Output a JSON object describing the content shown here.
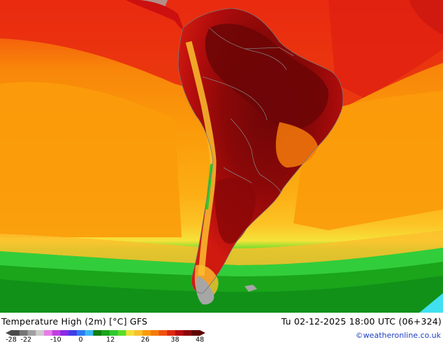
{
  "map": {
    "region": "South America",
    "field": "2m maximum temperature",
    "colors": {
      "green_dark": "#0a8a1e",
      "green": "#17b52b",
      "green_light": "#35d23f",
      "yellow": "#f6e23a",
      "orange_light": "#fbbf2e",
      "orange": "#fb9b0a",
      "orange_dark": "#f47a0a",
      "red_orange": "#f2520e",
      "red": "#e82810",
      "red_dark": "#cc1010",
      "maroon": "#a0080a",
      "maroon_dark": "#6e0607",
      "land_gray": "#a6a6a6",
      "border": "#888888",
      "sea_ice_cyan": "#40e0f0"
    }
  },
  "footer": {
    "title": "Temperature High (2m) [°C] GFS",
    "valid_time": "Tu 02-12-2025 18:00 UTC (06+324)",
    "credit": "©weatheronline.co.uk"
  },
  "legend": {
    "ticks": [
      "-28",
      "-22",
      "-10",
      "0",
      "12",
      "26",
      "38",
      "48"
    ],
    "tick_values": [
      -28,
      -22,
      -10,
      0,
      12,
      26,
      38,
      48
    ],
    "range": [
      -28,
      48
    ],
    "colors": [
      "#4a4a4a",
      "#767676",
      "#a0a0a0",
      "#cccccc",
      "#e87ce8",
      "#c040e0",
      "#8a2ae6",
      "#3e3ee8",
      "#2a7bf0",
      "#3cb8f4",
      "#0f7e0f",
      "#1aa51a",
      "#2fc82f",
      "#5adc2a",
      "#f0e03a",
      "#f8c02e",
      "#fb9b0a",
      "#f47a0a",
      "#f0520e",
      "#e02810",
      "#b80c0c",
      "#8a0606",
      "#600404"
    ]
  }
}
